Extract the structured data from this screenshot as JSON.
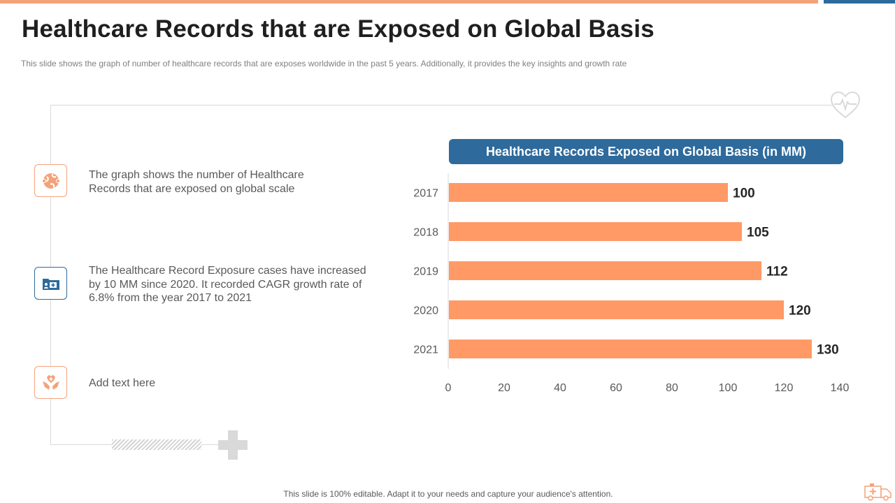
{
  "slide": {
    "title": "Healthcare Records that are Exposed on Global Basis",
    "subtitle": "This slide shows the graph  of number  of healthcare records that are exposes worldwide  in the past 5 years. Additionally, it provides  the key insights and growth rate",
    "footer": "This slide is 100% editable. Adapt it to your needs and capture your audience's attention."
  },
  "points": [
    {
      "icon": "globe-network-icon",
      "lines": [
        "The graph shows the number  of Healthcare",
        "Records that are exposed on global scale"
      ]
    },
    {
      "icon": "medical-folder-icon",
      "lines": [
        "The Healthcare Record Exposure cases have increased",
        "by 10 MM since 2020. It recorded CAGR growth rate of",
        "6.8% from the year 2017 to 2021"
      ]
    },
    {
      "icon": "hands-heart-icon",
      "lines": [
        "Add text here"
      ]
    }
  ],
  "colors": {
    "accent_orange": "#f4a27a",
    "bar_orange": "#ff9966",
    "accent_blue": "#2e6a9c"
  },
  "chart_data": {
    "type": "bar",
    "orientation": "horizontal",
    "title": "Healthcare Records Exposed on Global Basis (in MM)",
    "categories": [
      "2017",
      "2018",
      "2019",
      "2020",
      "2021"
    ],
    "values": [
      100,
      105,
      112,
      120,
      130
    ],
    "data_labels": [
      "100",
      "105",
      "112",
      "120",
      "130"
    ],
    "xlim": [
      0,
      140
    ],
    "x_ticks": [
      "0",
      "20",
      "40",
      "60",
      "80",
      "100",
      "120",
      "140"
    ],
    "grid": false,
    "legend": "none"
  }
}
